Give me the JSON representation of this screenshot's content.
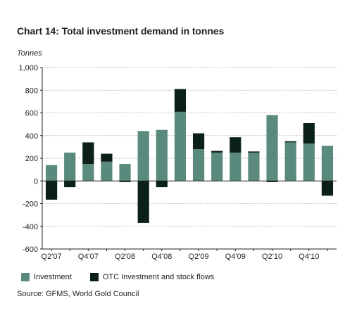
{
  "chart_data": {
    "type": "bar",
    "stacked": true,
    "title": "Chart 14: Total investment demand in tonnes",
    "ylabel": "Tonnes",
    "ylim": [
      -600,
      1000
    ],
    "yticks": [
      -600,
      -400,
      -200,
      0,
      200,
      400,
      600,
      800,
      1000
    ],
    "ytick_labels": [
      "-600",
      "-400",
      "-200",
      "0",
      "200",
      "400",
      "600",
      "800",
      "1,000"
    ],
    "grid": true,
    "categories": [
      "Q2'07",
      "Q3'07",
      "Q4'07",
      "Q1'08",
      "Q2'08",
      "Q3'08",
      "Q4'08",
      "Q1'09",
      "Q2'09",
      "Q3'09",
      "Q4'09",
      "Q1'10",
      "Q2'10",
      "Q3'10",
      "Q4'10",
      "Q1'11"
    ],
    "shown_xtick_labels": [
      "Q2'07",
      "Q4'07",
      "Q2'08",
      "Q4'08",
      "Q2'09",
      "Q4'09",
      "Q2'10",
      "Q4'10"
    ],
    "series": [
      {
        "name": "Investment",
        "color": "#5a8a7e",
        "values": [
          140,
          250,
          150,
          170,
          150,
          440,
          450,
          610,
          280,
          250,
          250,
          250,
          580,
          340,
          330,
          310
        ]
      },
      {
        "name": "OTC Investment and stock flows",
        "color": "#0b2118",
        "values": [
          -165,
          -55,
          190,
          70,
          -10,
          -370,
          -55,
          200,
          140,
          15,
          135,
          10,
          -10,
          10,
          180,
          -130
        ]
      }
    ],
    "legend_position": "bottom-left"
  },
  "source": "Source: GFMS, World Gold Council"
}
